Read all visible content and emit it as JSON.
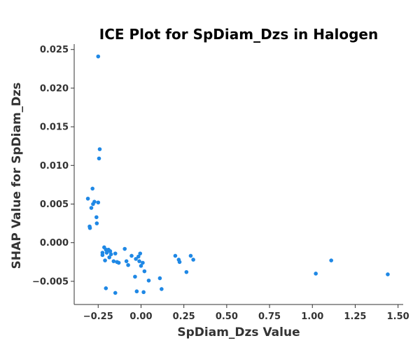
{
  "chart_data": {
    "type": "scatter",
    "title": "ICE Plot for SpDiam_Dzs in Halogen",
    "xlabel": "SpDiam_Dzs Value",
    "ylabel": "SHAP Value for SpDiam_Dzs",
    "xlim": [
      -0.39,
      1.53
    ],
    "ylim": [
      -0.008,
      0.0257
    ],
    "xticks": [
      -0.25,
      0.0,
      0.25,
      0.5,
      0.75,
      1.0,
      1.25,
      1.5
    ],
    "xtick_labels": [
      "−0.25",
      "0.00",
      "0.25",
      "0.50",
      "0.75",
      "1.00",
      "1.25",
      "1.50"
    ],
    "yticks": [
      -0.005,
      0.0,
      0.005,
      0.01,
      0.015,
      0.02,
      0.025
    ],
    "ytick_labels": [
      "−0.005",
      "0.000",
      "0.005",
      "0.010",
      "0.015",
      "0.020",
      "0.025"
    ],
    "grid": false,
    "color": "#1f88e5",
    "points": [
      [
        -0.25,
        0.0241
      ],
      [
        -0.241,
        0.0121
      ],
      [
        -0.245,
        0.0109
      ],
      [
        -0.283,
        0.007
      ],
      [
        -0.31,
        0.0057
      ],
      [
        -0.272,
        0.0053
      ],
      [
        -0.28,
        0.005
      ],
      [
        -0.25,
        0.0052
      ],
      [
        -0.29,
        0.0045
      ],
      [
        -0.26,
        0.0033
      ],
      [
        -0.258,
        0.0025
      ],
      [
        -0.3,
        0.0021
      ],
      [
        -0.298,
        0.0019
      ],
      [
        -0.215,
        -0.0006
      ],
      [
        -0.205,
        -0.0009
      ],
      [
        -0.19,
        -0.0009
      ],
      [
        -0.18,
        -0.0011
      ],
      [
        -0.225,
        -0.0013
      ],
      [
        -0.2,
        -0.0013
      ],
      [
        -0.175,
        -0.0015
      ],
      [
        -0.15,
        -0.0014
      ],
      [
        -0.225,
        -0.0016
      ],
      [
        -0.185,
        -0.0019
      ],
      [
        -0.21,
        -0.0023
      ],
      [
        -0.16,
        -0.0024
      ],
      [
        -0.14,
        -0.0025
      ],
      [
        -0.13,
        -0.0026
      ],
      [
        -0.095,
        -0.0008
      ],
      [
        -0.085,
        -0.0024
      ],
      [
        -0.075,
        -0.0029
      ],
      [
        -0.055,
        -0.0017
      ],
      [
        -0.03,
        -0.0021
      ],
      [
        -0.015,
        -0.0018
      ],
      [
        -0.01,
        -0.0024
      ],
      [
        -0.005,
        -0.0014
      ],
      [
        0.0,
        -0.003
      ],
      [
        0.01,
        -0.0026
      ],
      [
        0.02,
        -0.0037
      ],
      [
        -0.035,
        -0.0044
      ],
      [
        0.045,
        -0.0049
      ],
      [
        0.11,
        -0.0046
      ],
      [
        -0.205,
        -0.0059
      ],
      [
        -0.15,
        -0.0065
      ],
      [
        -0.025,
        -0.0063
      ],
      [
        0.015,
        -0.0064
      ],
      [
        0.12,
        -0.006
      ],
      [
        0.2,
        -0.0017
      ],
      [
        0.22,
        -0.0022
      ],
      [
        0.225,
        -0.0025
      ],
      [
        0.265,
        -0.0038
      ],
      [
        0.29,
        -0.0017
      ],
      [
        0.305,
        -0.0022
      ],
      [
        1.02,
        -0.004
      ],
      [
        1.11,
        -0.0023
      ],
      [
        1.44,
        -0.0041
      ]
    ]
  }
}
